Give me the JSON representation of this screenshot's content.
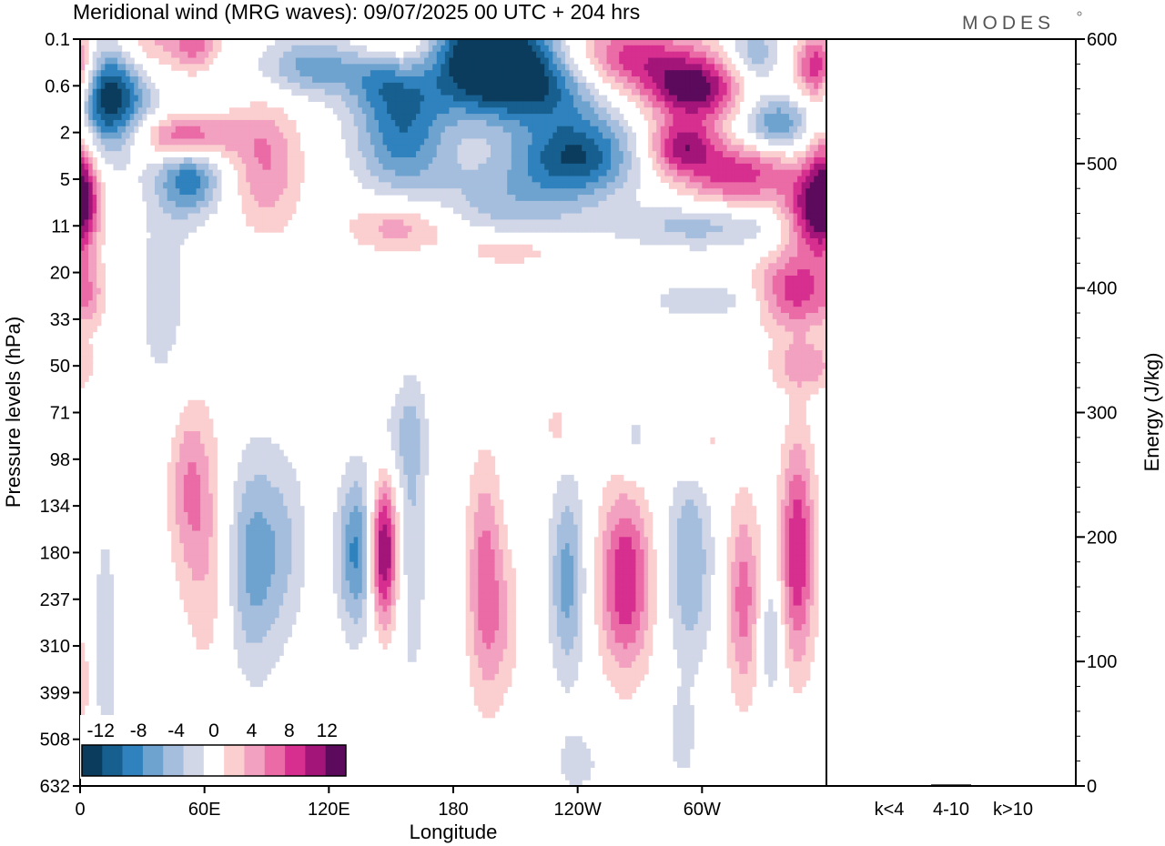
{
  "title": "Meridional wind (MRG waves):  09/07/2025  00 UTC  + 204 hrs",
  "logo": "MODES",
  "chart_data": [
    {
      "type": "heatmap",
      "title": "Meridional wind (MRG waves):  09/07/2025  00 UTC  + 204 hrs",
      "xlabel": "Longitude",
      "ylabel": "Pressure levels (hPa)",
      "x_ticks": [
        "0",
        "60E",
        "120E",
        "180",
        "120W",
        "60W"
      ],
      "x_tick_degrees": [
        0,
        60,
        120,
        180,
        240,
        300
      ],
      "xlim": [
        0,
        360
      ],
      "y_ticks": [
        "0.1",
        "0.6",
        "2",
        "5",
        "11",
        "20",
        "33",
        "50",
        "71",
        "98",
        "134",
        "180",
        "237",
        "310",
        "399",
        "508",
        "632"
      ],
      "colorbar": {
        "labels": [
          "-12",
          "-8",
          "-4",
          "0",
          "4",
          "8",
          "12"
        ],
        "label_values": [
          -12,
          -8,
          -4,
          0,
          4,
          8,
          12
        ],
        "levels": [
          -14,
          -12,
          -10,
          -8,
          -6,
          -4,
          -2,
          2,
          4,
          6,
          8,
          10,
          12,
          14
        ],
        "colors": [
          "#0b3c5d",
          "#175f8f",
          "#2f82bd",
          "#6fa3cf",
          "#a5bedd",
          "#d2d7e8",
          "#ffffff",
          "#fbcfcf",
          "#f3a1c0",
          "#ea6ba6",
          "#d62f8f",
          "#a31579",
          "#5b0a5c"
        ]
      },
      "features": [
        {
          "x": 14,
          "y": 1.3,
          "value": -14,
          "sx": 13,
          "sy": 0.8
        },
        {
          "x": 32,
          "y": 0.1,
          "value": 5,
          "sx": 10,
          "sy": 0.5
        },
        {
          "x": 55,
          "y": 0.1,
          "value": 7,
          "sx": 8,
          "sy": 0.4
        },
        {
          "x": 50,
          "y": 2.1,
          "value": 9,
          "sx": 18,
          "sy": 0.35
        },
        {
          "x": 53,
          "y": 3.0,
          "value": -9,
          "sx": 11,
          "sy": 0.55
        },
        {
          "x": 90,
          "y": 2.7,
          "value": 6,
          "sx": 12,
          "sy": 1.0
        },
        {
          "x": 112,
          "y": 0.6,
          "value": -7,
          "sx": 18,
          "sy": 0.45
        },
        {
          "x": 155,
          "y": 0.1,
          "value": 6,
          "sx": 15,
          "sy": 0.5
        },
        {
          "x": 155,
          "y": 2.0,
          "value": -9,
          "sx": 16,
          "sy": 0.9
        },
        {
          "x": 145,
          "y": 0.8,
          "value": -5,
          "sx": 12,
          "sy": 0.5
        },
        {
          "x": 198,
          "y": 0.1,
          "value": -14,
          "sx": 22,
          "sy": 0.6
        },
        {
          "x": 215,
          "y": 1.0,
          "value": -13,
          "sx": 32,
          "sy": 0.6
        },
        {
          "x": 240,
          "y": 2.5,
          "value": -11,
          "sx": 20,
          "sy": 0.6
        },
        {
          "x": 205,
          "y": 3.5,
          "value": -5,
          "sx": 28,
          "sy": 0.8
        },
        {
          "x": 262,
          "y": 0.5,
          "value": 11,
          "sx": 25,
          "sy": 0.6
        },
        {
          "x": 297,
          "y": 1.1,
          "value": 12,
          "sx": 16,
          "sy": 0.5
        },
        {
          "x": 290,
          "y": 2.3,
          "value": 10,
          "sx": 12,
          "sy": 0.4
        },
        {
          "x": 318,
          "y": 2.9,
          "value": 9,
          "sx": 20,
          "sy": 0.5
        },
        {
          "x": 335,
          "y": 1.8,
          "value": -8,
          "sx": 12,
          "sy": 0.4
        },
        {
          "x": 325,
          "y": 0.3,
          "value": -6,
          "sx": 9,
          "sy": 0.5
        },
        {
          "x": 355,
          "y": 0.6,
          "value": 9,
          "sx": 8,
          "sy": 0.5
        },
        {
          "x": 358,
          "y": 2.0,
          "value": 6,
          "sx": 6,
          "sy": 1.5
        },
        {
          "x": 2,
          "y": 3.4,
          "value": 7,
          "sx": 6,
          "sy": 0.8
        },
        {
          "x": 352,
          "y": 3.7,
          "value": 10,
          "sx": 9,
          "sy": 0.6
        },
        {
          "x": 155,
          "y": 4.0,
          "value": 6,
          "sx": 18,
          "sy": 0.4
        },
        {
          "x": 207,
          "y": 4.5,
          "value": 5,
          "sx": 20,
          "sy": 0.3
        },
        {
          "x": 300,
          "y": 4.0,
          "value": -5,
          "sx": 28,
          "sy": 0.35
        },
        {
          "x": 345,
          "y": 5.4,
          "value": 9,
          "sx": 13,
          "sy": 0.6
        },
        {
          "x": 300,
          "y": 5.6,
          "value": -4,
          "sx": 18,
          "sy": 0.25
        },
        {
          "x": 350,
          "y": 7.0,
          "value": 5,
          "sx": 12,
          "sy": 0.4
        },
        {
          "x": 40,
          "y": 5.5,
          "value": -3,
          "sx": 10,
          "sy": 1.8
        },
        {
          "x": 5,
          "y": 5.5,
          "value": 3,
          "sx": 5,
          "sy": 0.5
        },
        {
          "x": 52,
          "y": 9.5,
          "value": 5,
          "sx": 7,
          "sy": 1.3
        },
        {
          "x": 62,
          "y": 11.0,
          "value": 4,
          "sx": 9,
          "sy": 2.0
        },
        {
          "x": 83,
          "y": 11.2,
          "value": -7,
          "sx": 10,
          "sy": 1.7
        },
        {
          "x": 100,
          "y": 10.8,
          "value": -3,
          "sx": 8,
          "sy": 1.4
        },
        {
          "x": 134,
          "y": 11.0,
          "value": -9,
          "sx": 7,
          "sy": 1.2
        },
        {
          "x": 146,
          "y": 11.0,
          "value": 14,
          "sx": 5,
          "sy": 1.1
        },
        {
          "x": 160,
          "y": 10.5,
          "value": -4,
          "sx": 5,
          "sy": 2.5
        },
        {
          "x": 195,
          "y": 11.6,
          "value": 7,
          "sx": 6,
          "sy": 1.8
        },
        {
          "x": 205,
          "y": 12.5,
          "value": 3,
          "sx": 6,
          "sy": 1.2
        },
        {
          "x": 235,
          "y": 11.6,
          "value": -7,
          "sx": 6,
          "sy": 1.5
        },
        {
          "x": 263,
          "y": 11.6,
          "value": 10,
          "sx": 9,
          "sy": 1.4
        },
        {
          "x": 294,
          "y": 11.2,
          "value": -6,
          "sx": 8,
          "sy": 1.6
        },
        {
          "x": 320,
          "y": 12.0,
          "value": 7,
          "sx": 6,
          "sy": 1.5
        },
        {
          "x": 333,
          "y": 12.8,
          "value": -5,
          "sx": 4,
          "sy": 0.9
        },
        {
          "x": 346,
          "y": 11.0,
          "value": 10,
          "sx": 6,
          "sy": 1.7
        },
        {
          "x": 300,
          "y": 8.7,
          "value": 3,
          "sx": 10,
          "sy": 0.6
        },
        {
          "x": 267,
          "y": 8.6,
          "value": -3,
          "sx": 6,
          "sy": 0.6
        },
        {
          "x": 230,
          "y": 8.3,
          "value": 3,
          "sx": 5,
          "sy": 0.4
        },
        {
          "x": 155,
          "y": 8.5,
          "value": -3,
          "sx": 9,
          "sy": 0.7
        },
        {
          "x": 12,
          "y": 13.0,
          "value": -3,
          "sx": 5,
          "sy": 2.3
        },
        {
          "x": 2,
          "y": 13.8,
          "value": 3,
          "sx": 3,
          "sy": 1.0
        },
        {
          "x": 240,
          "y": 15.5,
          "value": -3,
          "sx": 8,
          "sy": 0.5
        },
        {
          "x": 290,
          "y": 15.0,
          "value": -3,
          "sx": 5,
          "sy": 0.7
        }
      ]
    },
    {
      "type": "bar",
      "categories": [
        "k<4",
        "4-10",
        "k>10"
      ],
      "values": [
        0.3,
        1.2,
        0.3
      ],
      "ylabel": "Energy (J/kg)",
      "ylim": [
        0,
        600
      ],
      "y_ticks": [
        "0",
        "100",
        "200",
        "300",
        "400",
        "500",
        "600"
      ]
    }
  ]
}
